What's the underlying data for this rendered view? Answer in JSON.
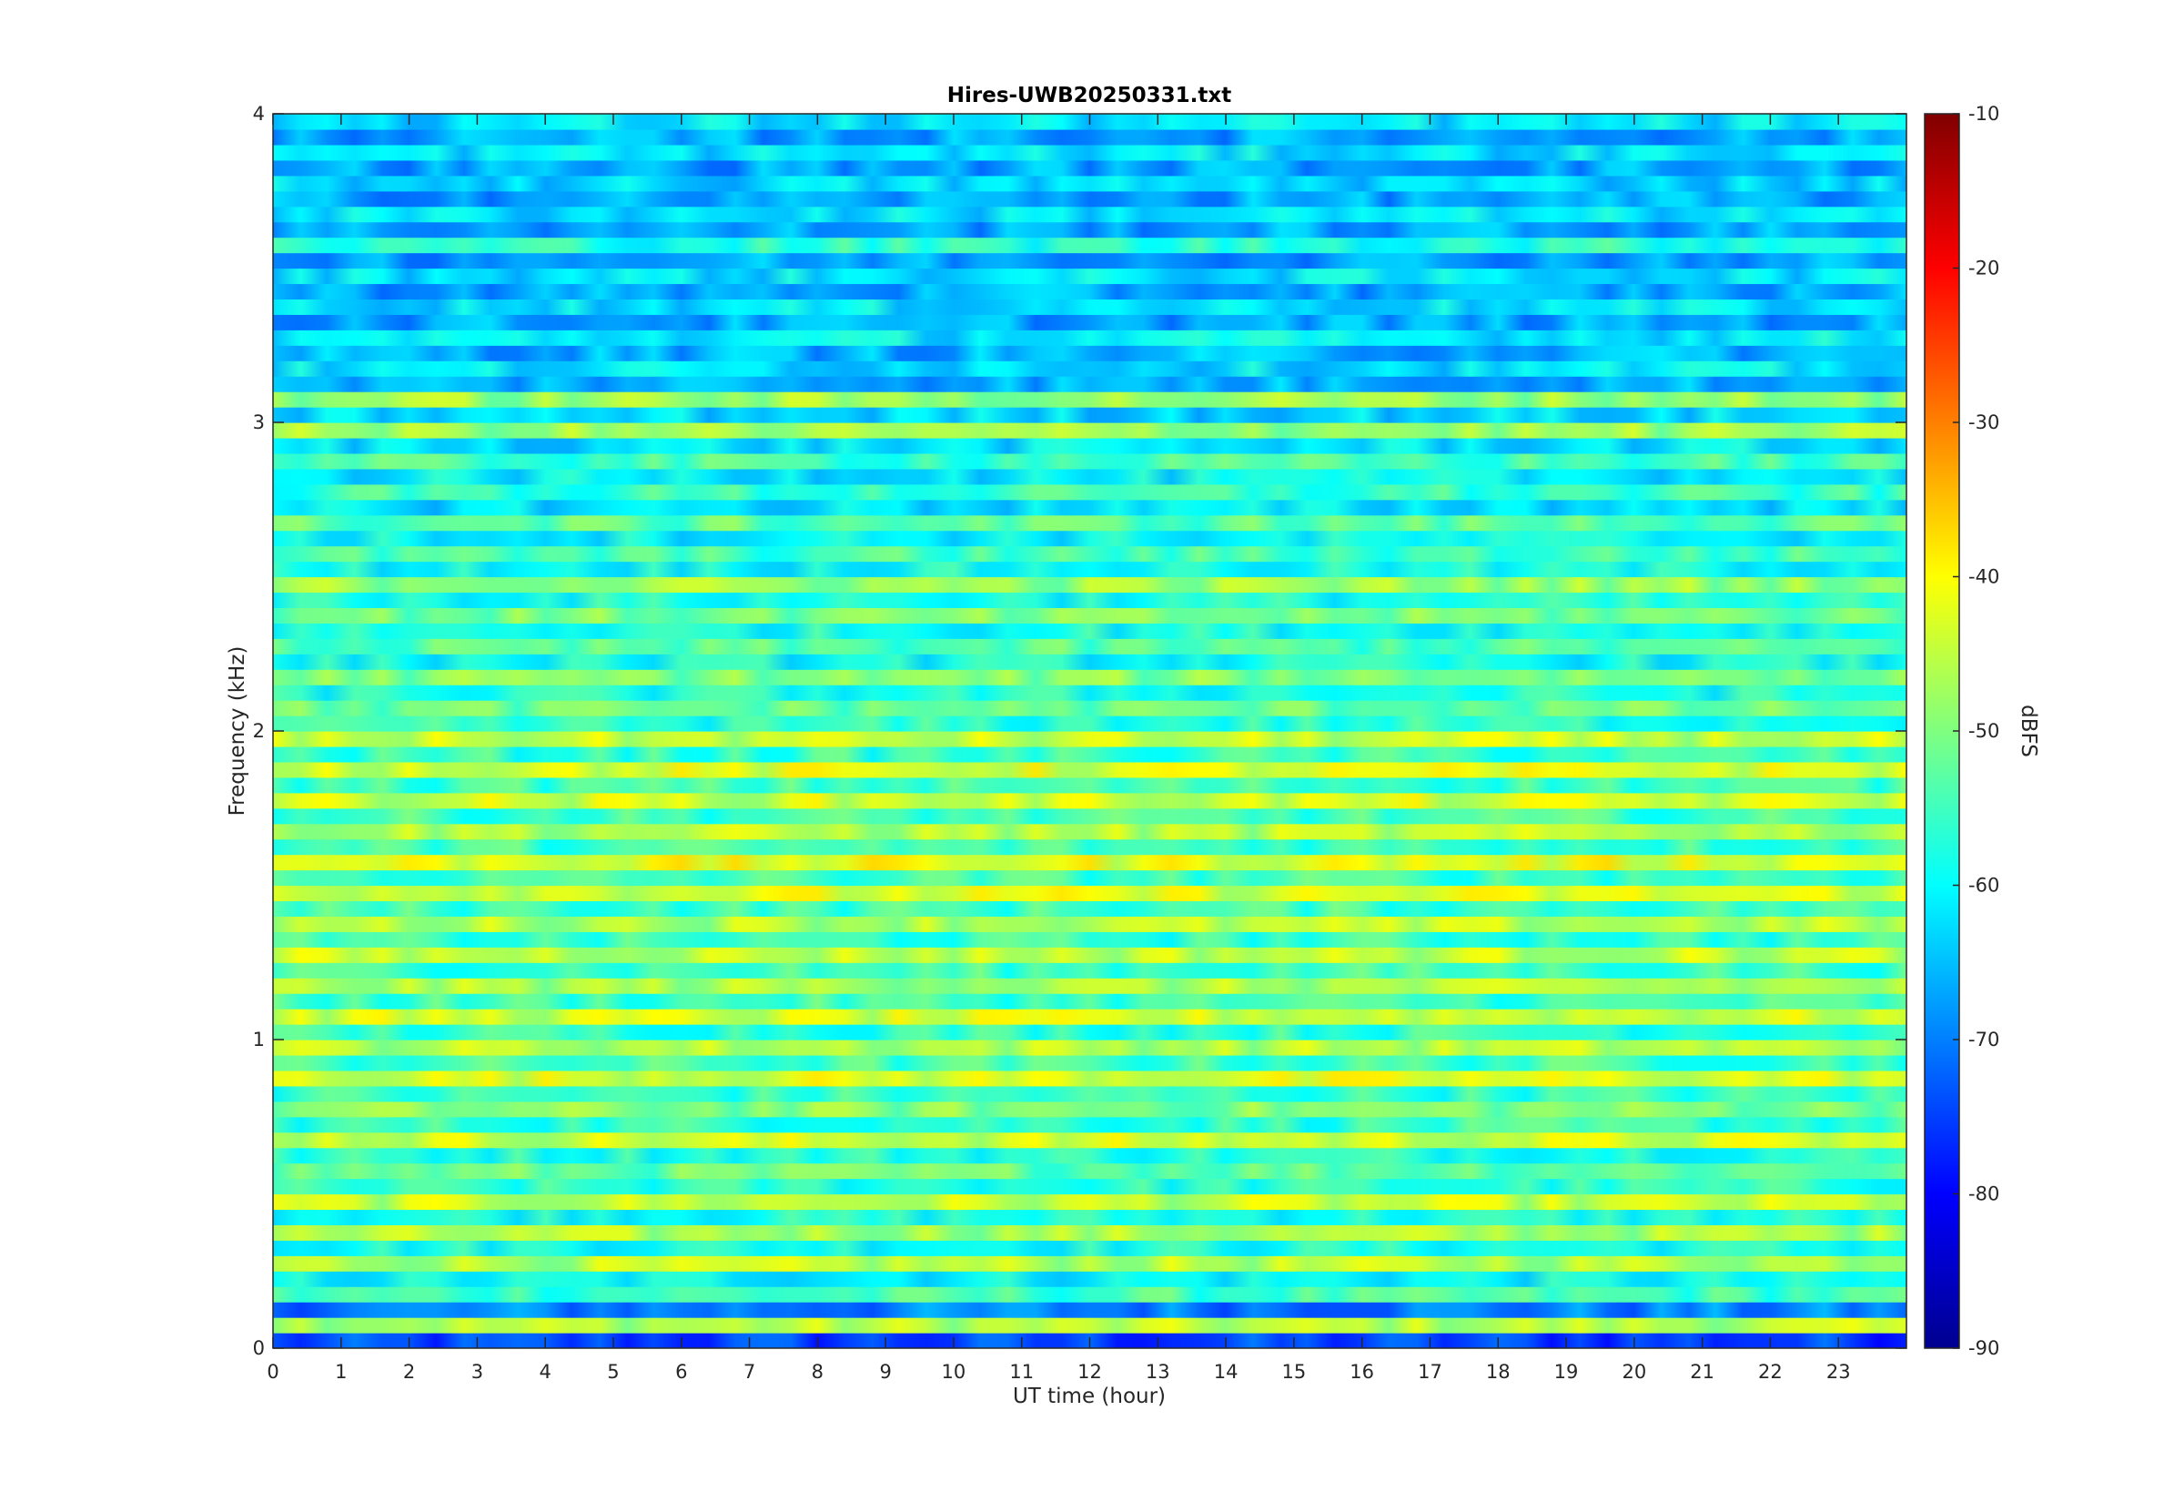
{
  "chart_data": {
    "type": "heatmap",
    "title": "Hires-UWB20250331.txt",
    "xlabel": "UT time (hour)",
    "ylabel": "Frequency (kHz)",
    "colorbar_label": "dBFS",
    "xlim": [
      0,
      24
    ],
    "ylim": [
      0,
      4
    ],
    "clim": [
      -90,
      -10
    ],
    "x_ticks": [
      "0",
      "1",
      "2",
      "3",
      "4",
      "5",
      "6",
      "7",
      "8",
      "9",
      "10",
      "11",
      "12",
      "13",
      "14",
      "15",
      "16",
      "17",
      "18",
      "19",
      "20",
      "21",
      "22",
      "23"
    ],
    "y_ticks": [
      "0",
      "1",
      "2",
      "3",
      "4"
    ],
    "colorbar_ticks": [
      "-10",
      "-20",
      "-30",
      "-40",
      "-50",
      "-60",
      "-70",
      "-80",
      "-90"
    ],
    "colormap": "jet",
    "colormap_stops": [
      "#00008f",
      "#0000ff",
      "#00ffff",
      "#ffff00",
      "#ff0000",
      "#800000"
    ],
    "grid": false,
    "bands_khz": [
      {
        "f": 0.0,
        "db": -75
      },
      {
        "f": 0.05,
        "db": -46
      },
      {
        "f": 0.1,
        "db": -70
      },
      {
        "f": 0.15,
        "db": -55
      },
      {
        "f": 0.2,
        "db": -60
      },
      {
        "f": 0.25,
        "db": -46
      },
      {
        "f": 0.3,
        "db": -58
      },
      {
        "f": 0.35,
        "db": -47
      },
      {
        "f": 0.4,
        "db": -58
      },
      {
        "f": 0.45,
        "db": -45
      },
      {
        "f": 0.5,
        "db": -57
      },
      {
        "f": 0.55,
        "db": -52
      },
      {
        "f": 0.6,
        "db": -57
      },
      {
        "f": 0.65,
        "db": -44
      },
      {
        "f": 0.7,
        "db": -56
      },
      {
        "f": 0.75,
        "db": -50
      },
      {
        "f": 0.8,
        "db": -56
      },
      {
        "f": 0.85,
        "db": -43
      },
      {
        "f": 0.9,
        "db": -55
      },
      {
        "f": 0.95,
        "db": -46
      },
      {
        "f": 1.0,
        "db": -56
      },
      {
        "f": 1.05,
        "db": -44
      },
      {
        "f": 1.1,
        "db": -55
      },
      {
        "f": 1.15,
        "db": -47
      },
      {
        "f": 1.2,
        "db": -55
      },
      {
        "f": 1.25,
        "db": -45
      },
      {
        "f": 1.3,
        "db": -56
      },
      {
        "f": 1.35,
        "db": -46
      },
      {
        "f": 1.4,
        "db": -55
      },
      {
        "f": 1.45,
        "db": -43
      },
      {
        "f": 1.5,
        "db": -55
      },
      {
        "f": 1.55,
        "db": -42
      },
      {
        "f": 1.6,
        "db": -55
      },
      {
        "f": 1.65,
        "db": -46
      },
      {
        "f": 1.7,
        "db": -55
      },
      {
        "f": 1.75,
        "db": -44
      },
      {
        "f": 1.8,
        "db": -55
      },
      {
        "f": 1.85,
        "db": -43
      },
      {
        "f": 1.9,
        "db": -56
      },
      {
        "f": 1.95,
        "db": -45
      },
      {
        "f": 2.0,
        "db": -57
      },
      {
        "f": 2.05,
        "db": -52
      },
      {
        "f": 2.1,
        "db": -58
      },
      {
        "f": 2.15,
        "db": -50
      },
      {
        "f": 2.2,
        "db": -59
      },
      {
        "f": 2.25,
        "db": -54
      },
      {
        "f": 2.3,
        "db": -58
      },
      {
        "f": 2.35,
        "db": -51
      },
      {
        "f": 2.4,
        "db": -58
      },
      {
        "f": 2.45,
        "db": -48
      },
      {
        "f": 2.5,
        "db": -59
      },
      {
        "f": 2.55,
        "db": -55
      },
      {
        "f": 2.6,
        "db": -60
      },
      {
        "f": 2.65,
        "db": -53
      },
      {
        "f": 2.7,
        "db": -62
      },
      {
        "f": 2.75,
        "db": -56
      },
      {
        "f": 2.8,
        "db": -61
      },
      {
        "f": 2.85,
        "db": -55
      },
      {
        "f": 2.9,
        "db": -62
      },
      {
        "f": 2.95,
        "db": -48
      },
      {
        "f": 3.0,
        "db": -63
      },
      {
        "f": 3.05,
        "db": -48
      },
      {
        "f": 3.1,
        "db": -66
      },
      {
        "f": 3.15,
        "db": -62
      },
      {
        "f": 3.2,
        "db": -66
      },
      {
        "f": 3.25,
        "db": -61
      },
      {
        "f": 3.3,
        "db": -67
      },
      {
        "f": 3.35,
        "db": -62
      },
      {
        "f": 3.4,
        "db": -67
      },
      {
        "f": 3.45,
        "db": -62
      },
      {
        "f": 3.5,
        "db": -67
      },
      {
        "f": 3.55,
        "db": -57
      },
      {
        "f": 3.6,
        "db": -67
      },
      {
        "f": 3.65,
        "db": -62
      },
      {
        "f": 3.7,
        "db": -67
      },
      {
        "f": 3.75,
        "db": -63
      },
      {
        "f": 3.8,
        "db": -67
      },
      {
        "f": 3.85,
        "db": -62
      },
      {
        "f": 3.9,
        "db": -67
      },
      {
        "f": 3.95,
        "db": -62
      }
    ]
  }
}
